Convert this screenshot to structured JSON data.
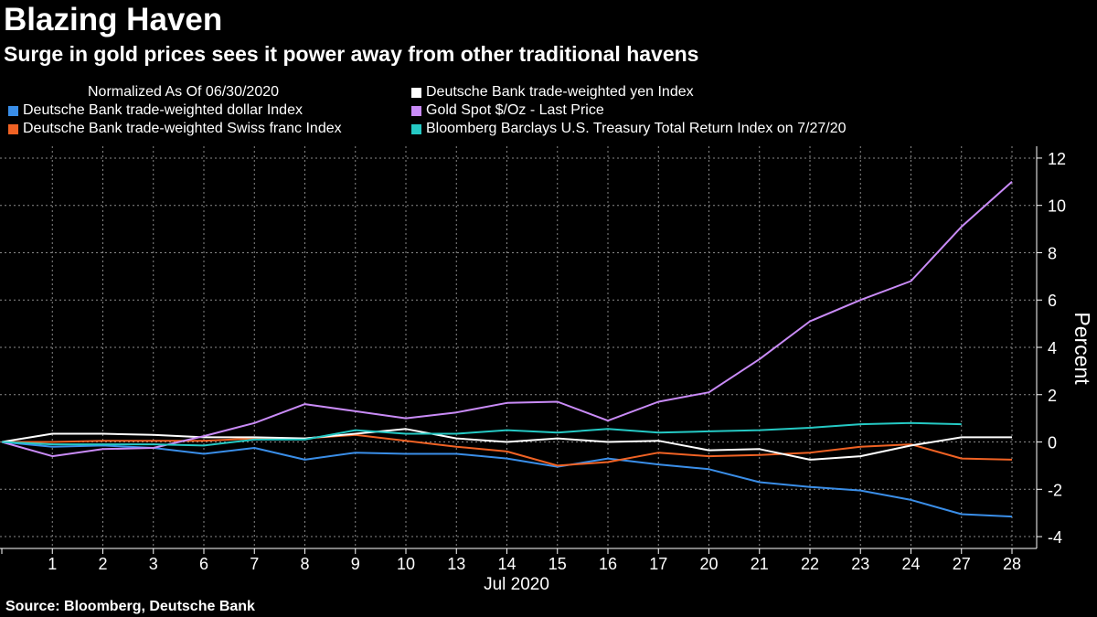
{
  "header": {
    "title": "Blazing Haven",
    "subtitle": "Surge in gold prices sees it power away from other traditional havens"
  },
  "legend_note": "Normalized As Of 06/30/2020",
  "source": "Source: Bloomberg, Deutsche Bank",
  "chart_data": {
    "type": "line",
    "title": "Blazing Haven",
    "subtitle": "Surge in gold prices sees it power away from other traditional havens",
    "xlabel": "Jul 2020",
    "ylabel": "Percent",
    "ylim": [
      -4.5,
      12.5
    ],
    "yticks": [
      -4,
      -2,
      0,
      2,
      4,
      6,
      8,
      10,
      12
    ],
    "y_tick_labels": [
      "-4",
      "-2",
      "0",
      "2",
      "4",
      "6",
      "8",
      "10",
      "12"
    ],
    "grid": true,
    "legend_position": "top",
    "categories": [
      "",
      "1",
      "2",
      "3",
      "6",
      "7",
      "8",
      "9",
      "10",
      "13",
      "14",
      "15",
      "16",
      "17",
      "20",
      "21",
      "22",
      "23",
      "24",
      "27",
      "28"
    ],
    "series": [
      {
        "name": "Deutsche Bank trade-weighted dollar Index",
        "color": "#3a8ee8",
        "values": [
          0,
          -0.2,
          -0.15,
          -0.25,
          -0.5,
          -0.25,
          -0.75,
          -0.45,
          -0.5,
          -0.5,
          -0.7,
          -1.05,
          -0.7,
          -0.95,
          -1.15,
          -1.7,
          -1.9,
          -2.05,
          -2.45,
          -3.05,
          -3.15
        ]
      },
      {
        "name": "Deutsche Bank trade-weighted Swiss franc Index",
        "color": "#f06224",
        "values": [
          0,
          0,
          0.05,
          0.05,
          0.05,
          0.15,
          0.15,
          0.3,
          0.05,
          -0.2,
          -0.4,
          -1.0,
          -0.85,
          -0.45,
          -0.6,
          -0.55,
          -0.45,
          -0.2,
          -0.1,
          -0.7,
          -0.75
        ]
      },
      {
        "name": "Deutsche Bank trade-weighted yen Index",
        "color": "#ffffff",
        "values": [
          0,
          0.35,
          0.35,
          0.3,
          0.2,
          0.2,
          0.15,
          0.35,
          0.55,
          0.15,
          0.0,
          0.15,
          0.0,
          0.05,
          -0.35,
          -0.3,
          -0.75,
          -0.6,
          -0.15,
          0.2,
          0.2
        ]
      },
      {
        "name": "Gold Spot $/Oz - Last Price",
        "color": "#c98bf7",
        "values": [
          0,
          -0.6,
          -0.3,
          -0.25,
          0.25,
          0.8,
          1.6,
          1.3,
          1.0,
          1.25,
          1.65,
          1.7,
          0.9,
          1.7,
          2.1,
          3.5,
          5.1,
          6.0,
          6.8,
          9.1,
          11.0
        ]
      },
      {
        "name": "Bloomberg Barclays U.S. Treasury Total Return Index on 7/27/20",
        "color": "#25c9c4",
        "values": [
          0,
          -0.1,
          -0.1,
          -0.1,
          -0.15,
          0.1,
          0.1,
          0.5,
          0.35,
          0.35,
          0.5,
          0.4,
          0.55,
          0.4,
          0.45,
          0.5,
          0.6,
          0.75,
          0.8,
          0.75,
          null
        ]
      }
    ]
  }
}
